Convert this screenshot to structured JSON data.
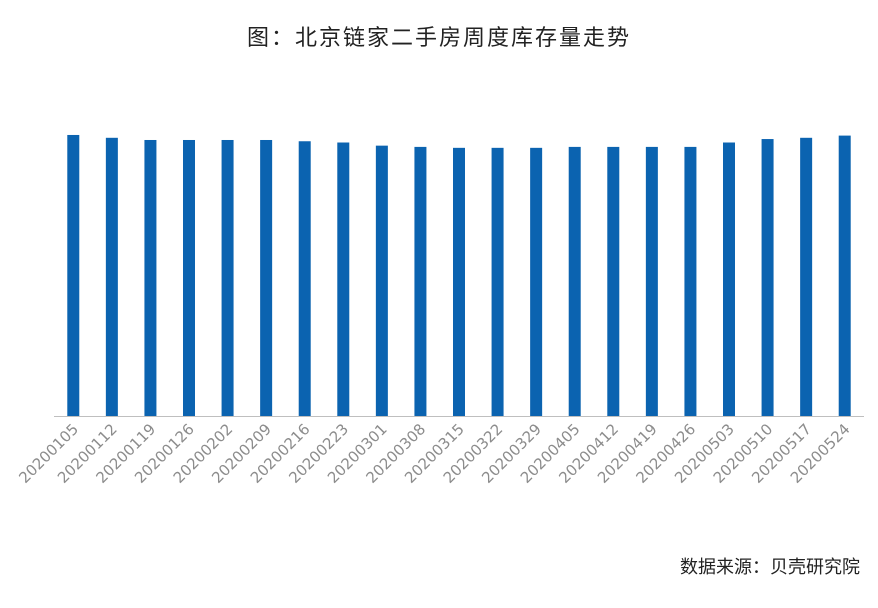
{
  "chart_data": {
    "type": "bar",
    "title": "图：北京链家二手房周度库存量走势",
    "source": "数据来源：贝壳研究院",
    "xlabel": "",
    "ylabel": "",
    "bar_color": "#0b63b0",
    "axis_color": "#bfbfbf",
    "tick_label_color": "#8c8c8c",
    "grid": false,
    "legend": "none",
    "ylim": [
      0,
      100
    ],
    "categories": [
      "20200105",
      "20200112",
      "20200119",
      "20200126",
      "20200202",
      "20200209",
      "20200216",
      "20200223",
      "20200301",
      "20200308",
      "20200315",
      "20200322",
      "20200329",
      "20200405",
      "20200412",
      "20200419",
      "20200426",
      "20200503",
      "20200510",
      "20200517",
      "20200524"
    ],
    "values": [
      89.5,
      88.6,
      87.9,
      87.9,
      87.9,
      87.9,
      87.5,
      87.1,
      86.1,
      85.7,
      85.4,
      85.4,
      85.4,
      85.7,
      85.7,
      85.7,
      85.7,
      87.1,
      88.2,
      88.6,
      89.3
    ]
  }
}
